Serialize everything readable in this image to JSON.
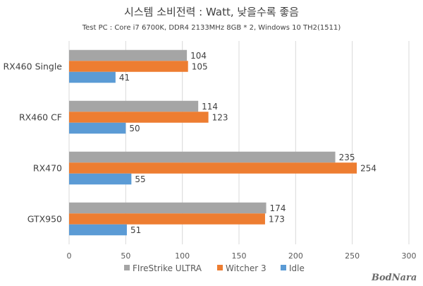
{
  "chart_data": {
    "type": "bar",
    "orientation": "horizontal",
    "title": "시스템 소비전력 : Watt, 낮을수록 좋음",
    "subtitle": "Test PC : Core i7 6700K, DDR4 2133MHz 8GB * 2, Windows 10 TH2(1511)",
    "categories": [
      "RX460 Single",
      "RX460 CF",
      "RX470",
      "GTX950"
    ],
    "series": [
      {
        "name": "FIreStrike ULTRA",
        "color": "#a5a5a5",
        "values": [
          104,
          114,
          235,
          174
        ]
      },
      {
        "name": "Witcher 3",
        "color": "#ed7d31",
        "values": [
          105,
          123,
          254,
          173
        ]
      },
      {
        "name": "Idle",
        "color": "#5b9bd5",
        "values": [
          41,
          50,
          55,
          51
        ]
      }
    ],
    "xlim": [
      0,
      300
    ],
    "xticks": [
      "0",
      "50",
      "100",
      "150",
      "200",
      "250",
      "300"
    ],
    "grid": true,
    "legend": "bottom",
    "xlabel": "",
    "ylabel": ""
  },
  "watermark": "BodNara"
}
